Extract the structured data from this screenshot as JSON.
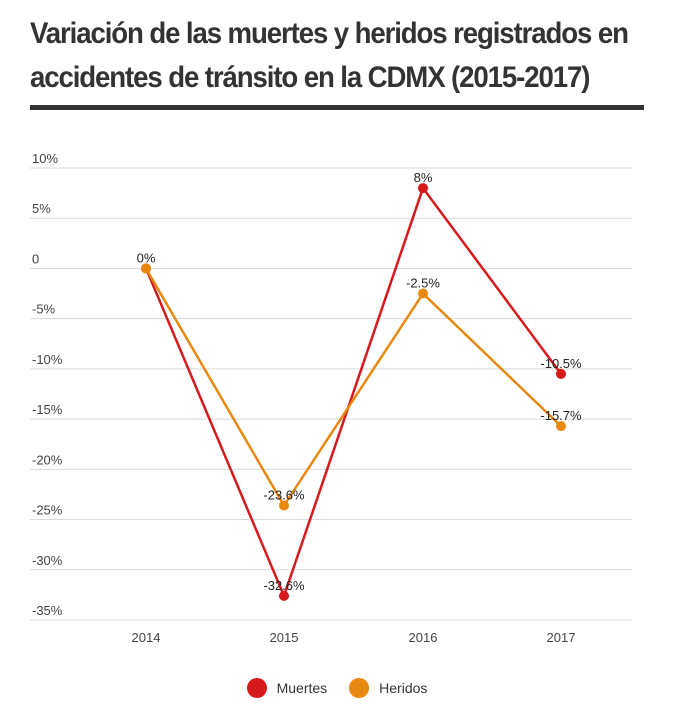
{
  "chart_data": {
    "type": "line",
    "title": "Variación de las muertes y heridos registrados en accidentes de tránsito en la CDMX (2015-2017)",
    "categories": [
      "2014",
      "2015",
      "2016",
      "2017"
    ],
    "ylim": [
      -35,
      10
    ],
    "yticks": [
      10,
      5,
      0,
      -5,
      -10,
      -15,
      -20,
      -25,
      -30,
      -35
    ],
    "ytick_labels": [
      "10%",
      "5%",
      "0",
      "-5%",
      "-10%",
      "-15%",
      "-20%",
      "-25%",
      "-30%",
      "-35%"
    ],
    "grid": true,
    "legend_position": "bottom-center",
    "series": [
      {
        "name": "Muertes",
        "color": "#d7191c",
        "values": [
          0,
          -32.6,
          8,
          -10.5
        ],
        "labels": [
          "",
          "-32.6%",
          "8%",
          "-10.5%"
        ]
      },
      {
        "name": "Heridos",
        "color": "#e8880e",
        "values": [
          0,
          -23.6,
          -2.5,
          -15.7
        ],
        "labels": [
          "0%",
          "-23.6%",
          "-2.5%",
          "-15.7%"
        ]
      }
    ]
  }
}
